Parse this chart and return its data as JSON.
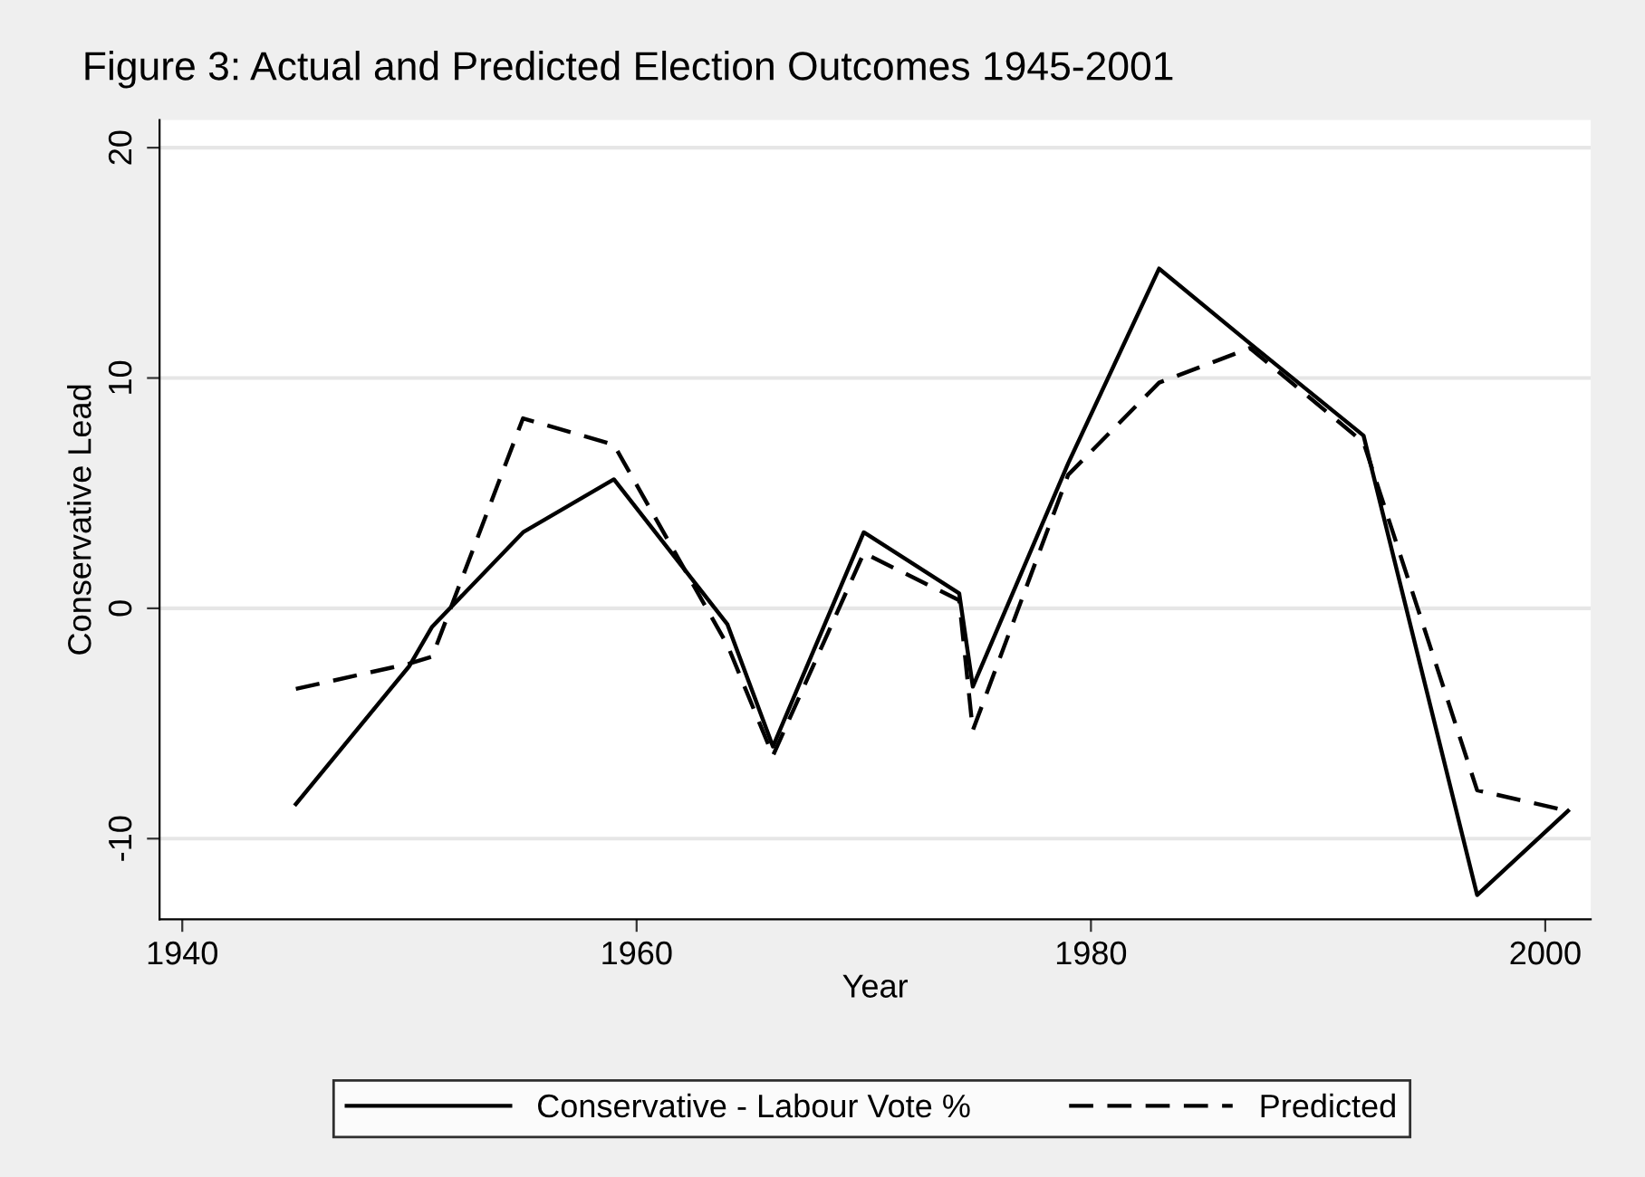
{
  "chart_data": {
    "type": "line",
    "title": "Figure 3: Actual and Predicted Election Outcomes 1945-2001",
    "xlabel": "Year",
    "ylabel": "Conservative Lead",
    "x": [
      1945,
      1950,
      1951,
      1955,
      1959,
      1964,
      1966,
      1970,
      1974.2,
      1974.8,
      1979,
      1983,
      1987,
      1992,
      1997,
      2001
    ],
    "series": [
      {
        "name": "Conservative - Labour Vote %",
        "color": "#000000",
        "line_style": "solid",
        "values": [
          -8.5,
          -2.5,
          -0.8,
          3.3,
          5.6,
          -0.7,
          -6.0,
          3.3,
          0.65,
          -3.4,
          6.3,
          14.75,
          11.5,
          7.5,
          -12.45,
          -8.8
        ]
      },
      {
        "name": "Predicted",
        "color": "#000000",
        "line_style": "dashed",
        "values": [
          -3.5,
          -2.4,
          -2.1,
          8.25,
          7.1,
          -1.6,
          -6.4,
          2.4,
          0.35,
          -5.3,
          5.8,
          9.8,
          11.3,
          7.2,
          -7.9,
          -8.8
        ]
      }
    ],
    "xlim": [
      1939,
      2002
    ],
    "xticks": [
      1940,
      1960,
      1980,
      2000
    ],
    "ylim": [
      -13.5,
      21.2
    ],
    "yticks": [
      -10,
      0,
      10,
      20
    ],
    "grid": "y",
    "legend": "bottom",
    "marker": "none"
  }
}
